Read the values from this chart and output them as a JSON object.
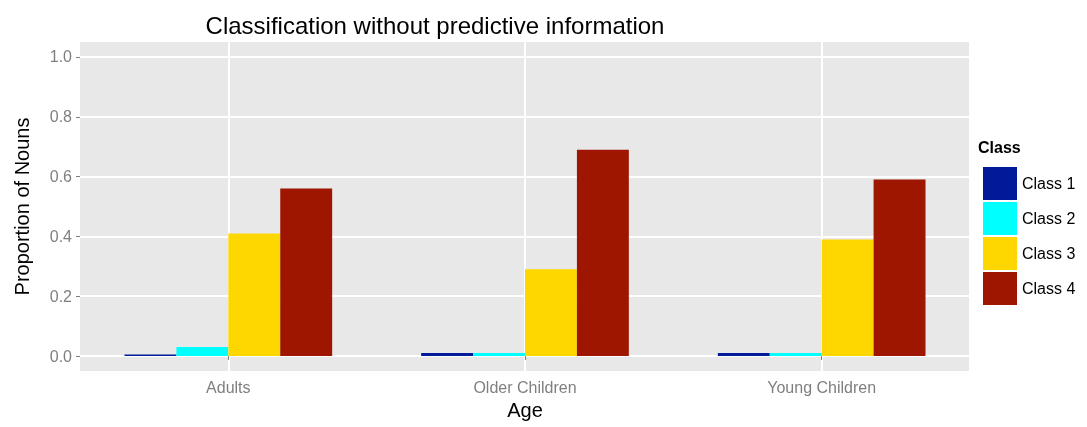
{
  "chart_data": {
    "type": "bar",
    "title": "Classification without predictive information",
    "xlabel": "Age",
    "ylabel": "Proportion of Nouns",
    "legend_title": "Class",
    "categories": [
      "Adults",
      "Older Children",
      "Young Children"
    ],
    "series": [
      {
        "name": "Class 1",
        "color": "#001a99",
        "values": [
          0.005,
          0.01,
          0.01
        ]
      },
      {
        "name": "Class 2",
        "color": "#00ffff",
        "values": [
          0.03,
          0.01,
          0.01
        ]
      },
      {
        "name": "Class 3",
        "color": "#ffd700",
        "values": [
          0.41,
          0.29,
          0.39
        ]
      },
      {
        "name": "Class 4",
        "color": "#9e1500",
        "values": [
          0.56,
          0.69,
          0.59
        ]
      }
    ],
    "ylim": [
      -0.05,
      1.05
    ],
    "yticks": [
      {
        "value": 0,
        "label": "0.0"
      },
      {
        "value": 0.2,
        "label": "0.2"
      },
      {
        "value": 0.4,
        "label": "0.4"
      },
      {
        "value": 0.6,
        "label": "0.6"
      },
      {
        "value": 0.8,
        "label": "0.8"
      },
      {
        "value": 1,
        "label": "1.0"
      }
    ],
    "grid": true,
    "legend": "right"
  }
}
